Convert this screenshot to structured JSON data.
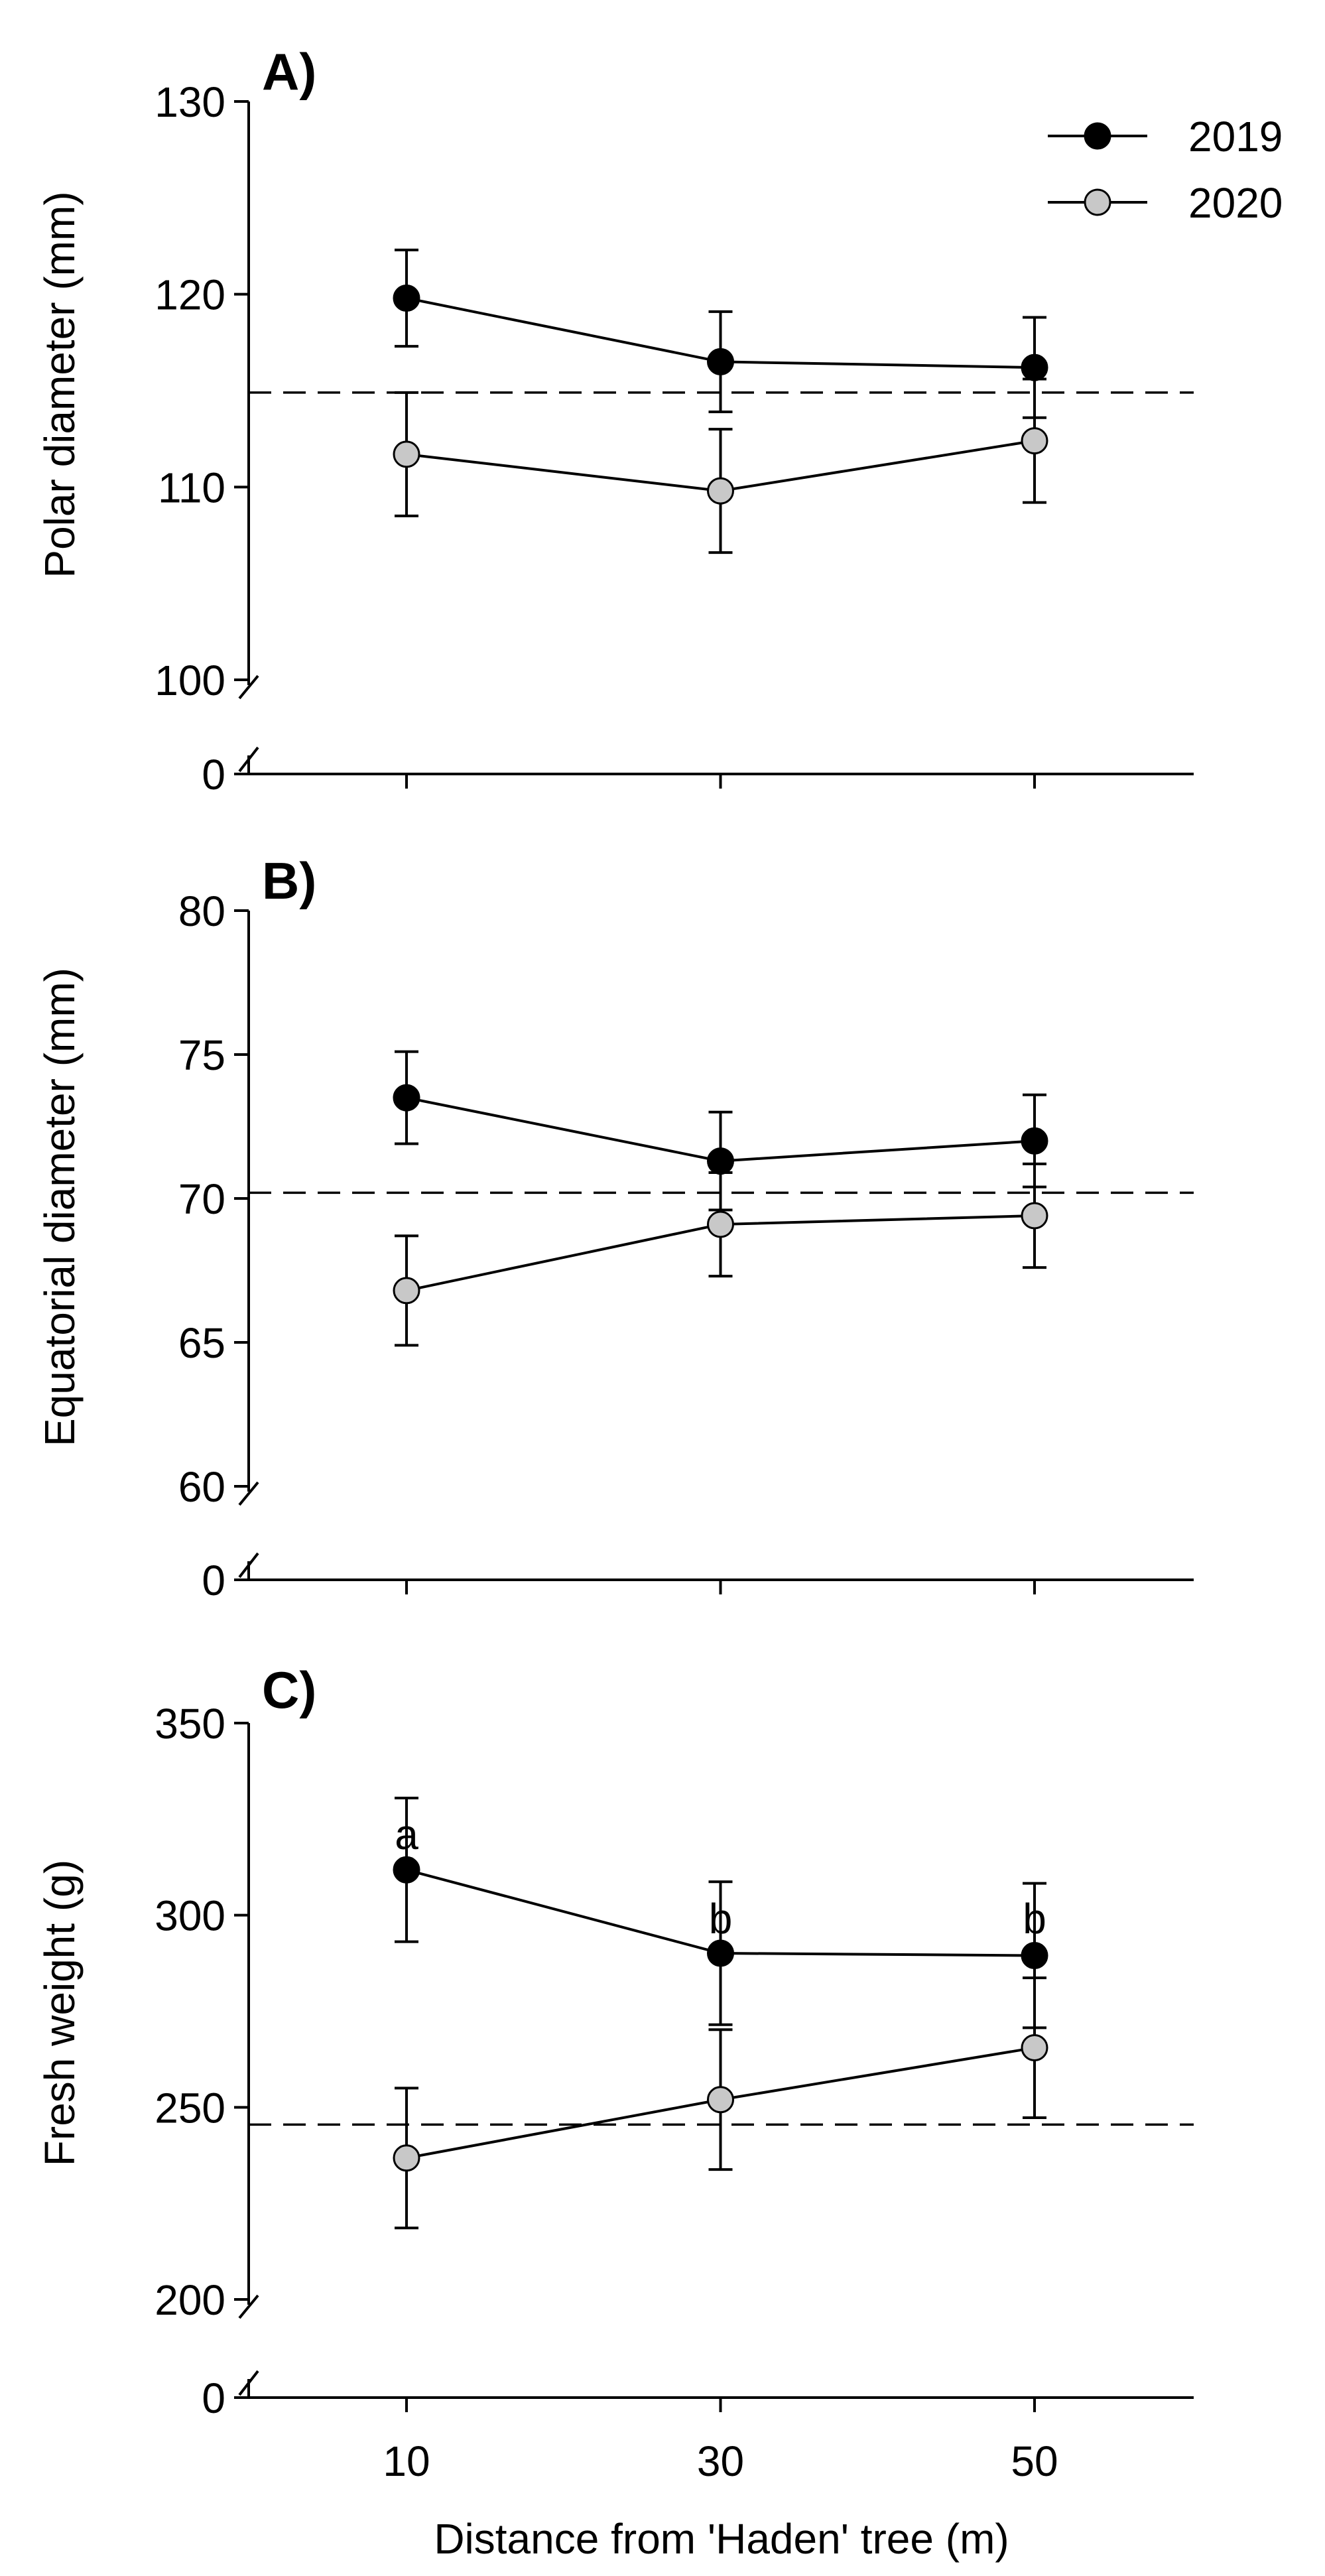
{
  "chart_data": [
    {
      "type": "line",
      "panel_label": "A)",
      "ylabel": "Polar diameter (mm)",
      "ylim": [
        100,
        130
      ],
      "yticks": [
        "100",
        "110",
        "120",
        "130"
      ],
      "axis_break": true,
      "axis_break_label": "0",
      "x": [
        10,
        30,
        50
      ],
      "reference_line": 114.9,
      "series": [
        {
          "name": "2019",
          "color": "#000000",
          "values": [
            119.8,
            116.5,
            116.2
          ],
          "errors": [
            2.5,
            2.6,
            2.6
          ]
        },
        {
          "name": "2020",
          "color": "#c8c8c8",
          "values": [
            111.7,
            109.8,
            112.4
          ],
          "errors": [
            3.2,
            3.2,
            3.2
          ]
        }
      ],
      "annotations": []
    },
    {
      "type": "line",
      "panel_label": "B)",
      "ylabel": "Equatorial diameter (mm)",
      "ylim": [
        60,
        80
      ],
      "yticks": [
        "60",
        "65",
        "70",
        "75",
        "80"
      ],
      "axis_break": true,
      "axis_break_label": "0",
      "x": [
        10,
        30,
        50
      ],
      "reference_line": 70.2,
      "series": [
        {
          "name": "2019",
          "color": "#000000",
          "values": [
            73.5,
            71.3,
            72.0
          ],
          "errors": [
            1.6,
            1.7,
            1.6
          ]
        },
        {
          "name": "2020",
          "color": "#c8c8c8",
          "values": [
            66.8,
            69.1,
            69.4
          ],
          "errors": [
            1.9,
            1.8,
            1.8
          ]
        }
      ],
      "annotations": []
    },
    {
      "type": "line",
      "panel_label": "C)",
      "ylabel": "Fresh weight (g)",
      "ylim": [
        200,
        350
      ],
      "yticks": [
        "200",
        "250",
        "300",
        "350"
      ],
      "axis_break": true,
      "axis_break_label": "0",
      "x": [
        10,
        30,
        50
      ],
      "xticks": [
        "10",
        "30",
        "50"
      ],
      "xlabel": "Distance from 'Haden' tree (m)",
      "reference_line": 245.5,
      "series": [
        {
          "name": "2019",
          "color": "#000000",
          "values": [
            311.8,
            290.1,
            289.5
          ],
          "errors": [
            18.7,
            18.6,
            18.8
          ]
        },
        {
          "name": "2020",
          "color": "#c8c8c8",
          "values": [
            236.8,
            252.0,
            265.5
          ],
          "errors": [
            18.2,
            18.2,
            18.2
          ]
        }
      ],
      "annotations": [
        {
          "x": 10,
          "text": "a"
        },
        {
          "x": 30,
          "text": "b"
        },
        {
          "x": 50,
          "text": "b"
        }
      ]
    }
  ],
  "legend": {
    "position": "top-right",
    "entries": [
      {
        "label": "2019",
        "color": "#000000"
      },
      {
        "label": "2020",
        "color": "#c8c8c8"
      }
    ]
  }
}
